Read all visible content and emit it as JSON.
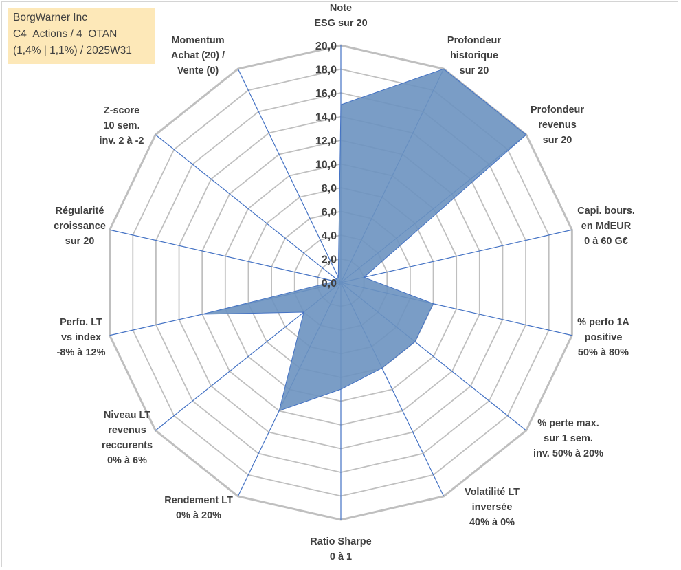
{
  "info_box": {
    "line1": "BorgWarner Inc",
    "line2": "C4_Actions / 4_OTAN",
    "line3": "(1,4% | 1,1%) / 2025W31"
  },
  "chart_data": {
    "type": "radar",
    "rmin": 0,
    "rmax": 20,
    "tick_step": 2,
    "tick_labels": [
      "0,0",
      "2,0",
      "4,0",
      "6,0",
      "8,0",
      "10,0",
      "12,0",
      "14,0",
      "16,0",
      "18,0",
      "20,0"
    ],
    "axes": [
      {
        "label": [
          "Note",
          "ESG sur 20"
        ],
        "value": 15.0
      },
      {
        "label": [
          "Profondeur",
          "historique",
          "sur 20"
        ],
        "value": 20.0
      },
      {
        "label": [
          "Profondeur",
          "revenus",
          "sur 20"
        ],
        "value": 20.0
      },
      {
        "label": [
          "Capi. bours.",
          "en MdEUR",
          "0 à 60 G€"
        ],
        "value": 2.0
      },
      {
        "label": [
          "% perfo 1A",
          "positive",
          "50% à 80%"
        ],
        "value": 8.0
      },
      {
        "label": [
          "% perte max.",
          "sur 1 sem.",
          "inv. 50% à 20%"
        ],
        "value": 8.0
      },
      {
        "label": [
          "Volatilité LT",
          "inversée",
          "40% à 0%"
        ],
        "value": 8.0
      },
      {
        "label": [
          "Ratio Sharpe",
          "0 à 1"
        ],
        "value": 9.0
      },
      {
        "label": [
          "Rendement LT",
          "0% à 20%"
        ],
        "value": 12.0
      },
      {
        "label": [
          "Niveau LT",
          "revenus",
          "reccurents",
          "0% à 6%"
        ],
        "value": 4.0
      },
      {
        "label": [
          "Perfo. LT",
          "vs index",
          "-8% à 12%"
        ],
        "value": 12.0
      },
      {
        "label": [
          "Régularité",
          "croissance",
          "sur 20"
        ],
        "value": 0.5
      },
      {
        "label": [
          "Z-score",
          "10 sem.",
          "inv. 2 à -2"
        ],
        "value": 0.5
      },
      {
        "label": [
          "Momentum",
          "Achat (20) /",
          "Vente (0)"
        ],
        "value": 0.5
      }
    ],
    "fill_color": "#6b92c0",
    "stroke_color": "#4472c4",
    "grid_color": "#bfbfbf",
    "spoke_color": "#4472c4",
    "grid": true,
    "legend": "none"
  }
}
